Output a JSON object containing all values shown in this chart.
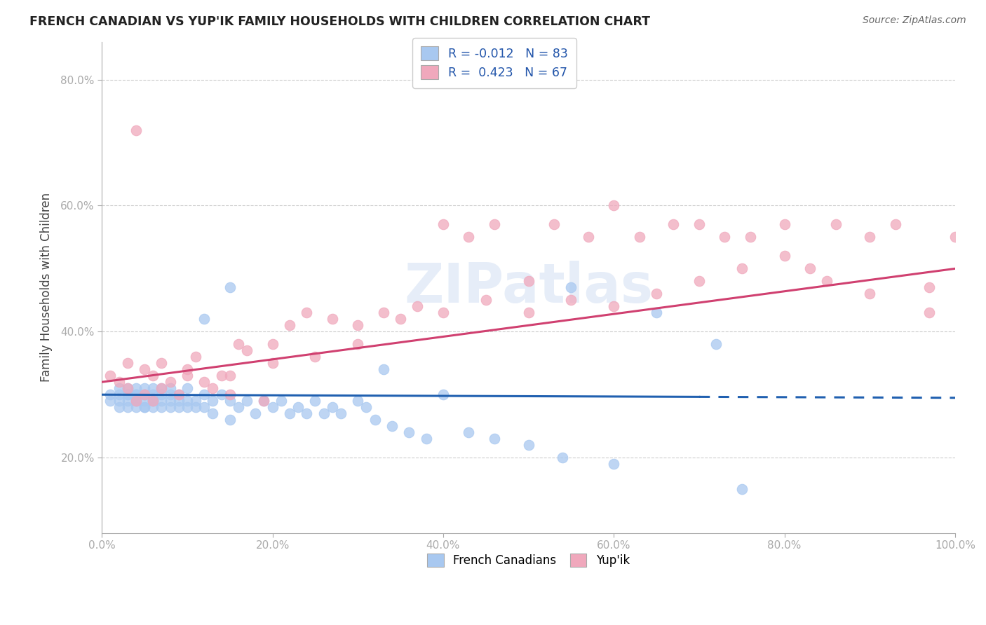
{
  "title": "FRENCH CANADIAN VS YUP'IK FAMILY HOUSEHOLDS WITH CHILDREN CORRELATION CHART",
  "source": "Source: ZipAtlas.com",
  "ylabel": "Family Households with Children",
  "xlim": [
    0.0,
    1.0
  ],
  "ylim": [
    0.08,
    0.86
  ],
  "yticks": [
    0.2,
    0.4,
    0.6,
    0.8
  ],
  "ytick_labels": [
    "20.0%",
    "40.0%",
    "60.0%",
    "80.0%"
  ],
  "xticks": [
    0.0,
    0.2,
    0.4,
    0.6,
    0.8,
    1.0
  ],
  "xtick_labels": [
    "0.0%",
    "20.0%",
    "40.0%",
    "60.0%",
    "80.0%",
    "100.0%"
  ],
  "legend1_r": "-0.012",
  "legend1_n": "83",
  "legend2_r": "0.423",
  "legend2_n": "67",
  "blue_color": "#a8c8f0",
  "pink_color": "#f0a8bc",
  "blue_line_color": "#2060b0",
  "pink_line_color": "#d04070",
  "watermark": "ZIPatlas",
  "blue_line_y0": 0.3,
  "blue_line_y1": 0.295,
  "pink_line_y0": 0.32,
  "pink_line_y1": 0.5,
  "blue_x": [
    0.01,
    0.01,
    0.02,
    0.02,
    0.02,
    0.02,
    0.03,
    0.03,
    0.03,
    0.03,
    0.03,
    0.04,
    0.04,
    0.04,
    0.04,
    0.04,
    0.04,
    0.05,
    0.05,
    0.05,
    0.05,
    0.05,
    0.05,
    0.06,
    0.06,
    0.06,
    0.06,
    0.06,
    0.07,
    0.07,
    0.07,
    0.07,
    0.08,
    0.08,
    0.08,
    0.08,
    0.09,
    0.09,
    0.09,
    0.1,
    0.1,
    0.1,
    0.11,
    0.11,
    0.12,
    0.12,
    0.13,
    0.13,
    0.14,
    0.15,
    0.15,
    0.16,
    0.17,
    0.18,
    0.19,
    0.2,
    0.21,
    0.22,
    0.23,
    0.24,
    0.25,
    0.26,
    0.27,
    0.28,
    0.3,
    0.31,
    0.32,
    0.34,
    0.36,
    0.38,
    0.4,
    0.43,
    0.46,
    0.5,
    0.54,
    0.6,
    0.75,
    0.55,
    0.65,
    0.72,
    0.33,
    0.15,
    0.12
  ],
  "blue_y": [
    0.3,
    0.29,
    0.3,
    0.29,
    0.31,
    0.28,
    0.3,
    0.29,
    0.31,
    0.28,
    0.3,
    0.29,
    0.3,
    0.28,
    0.31,
    0.29,
    0.3,
    0.28,
    0.3,
    0.29,
    0.31,
    0.28,
    0.3,
    0.29,
    0.3,
    0.28,
    0.31,
    0.29,
    0.3,
    0.29,
    0.28,
    0.31,
    0.29,
    0.3,
    0.28,
    0.31,
    0.29,
    0.28,
    0.3,
    0.29,
    0.28,
    0.31,
    0.29,
    0.28,
    0.3,
    0.28,
    0.29,
    0.27,
    0.3,
    0.29,
    0.26,
    0.28,
    0.29,
    0.27,
    0.29,
    0.28,
    0.29,
    0.27,
    0.28,
    0.27,
    0.29,
    0.27,
    0.28,
    0.27,
    0.29,
    0.28,
    0.26,
    0.25,
    0.24,
    0.23,
    0.3,
    0.24,
    0.23,
    0.22,
    0.2,
    0.19,
    0.15,
    0.47,
    0.43,
    0.38,
    0.34,
    0.47,
    0.42
  ],
  "pink_x": [
    0.01,
    0.02,
    0.03,
    0.03,
    0.04,
    0.04,
    0.05,
    0.05,
    0.06,
    0.06,
    0.07,
    0.07,
    0.08,
    0.09,
    0.1,
    0.11,
    0.12,
    0.13,
    0.14,
    0.15,
    0.16,
    0.17,
    0.19,
    0.2,
    0.22,
    0.24,
    0.27,
    0.3,
    0.33,
    0.37,
    0.4,
    0.43,
    0.46,
    0.5,
    0.53,
    0.57,
    0.6,
    0.63,
    0.67,
    0.7,
    0.73,
    0.76,
    0.8,
    0.83,
    0.86,
    0.9,
    0.93,
    0.97,
    1.0,
    0.97,
    0.6,
    0.65,
    0.7,
    0.75,
    0.8,
    0.85,
    0.9,
    0.55,
    0.5,
    0.45,
    0.4,
    0.35,
    0.3,
    0.25,
    0.2,
    0.15,
    0.1
  ],
  "pink_y": [
    0.33,
    0.32,
    0.35,
    0.31,
    0.72,
    0.29,
    0.34,
    0.3,
    0.29,
    0.33,
    0.31,
    0.35,
    0.32,
    0.3,
    0.34,
    0.36,
    0.32,
    0.31,
    0.33,
    0.3,
    0.38,
    0.37,
    0.29,
    0.38,
    0.41,
    0.43,
    0.42,
    0.41,
    0.43,
    0.44,
    0.57,
    0.55,
    0.57,
    0.48,
    0.57,
    0.55,
    0.6,
    0.55,
    0.57,
    0.57,
    0.55,
    0.55,
    0.57,
    0.5,
    0.57,
    0.55,
    0.57,
    0.47,
    0.55,
    0.43,
    0.44,
    0.46,
    0.48,
    0.5,
    0.52,
    0.48,
    0.46,
    0.45,
    0.43,
    0.45,
    0.43,
    0.42,
    0.38,
    0.36,
    0.35,
    0.33,
    0.33
  ]
}
